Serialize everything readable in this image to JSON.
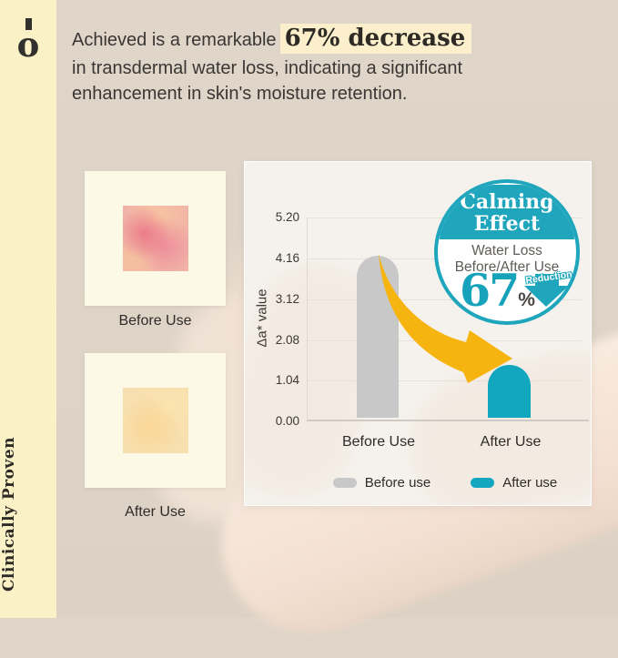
{
  "brand": {
    "logo_glyph": "o",
    "tagline": "Clinically Proven"
  },
  "header": {
    "line1_prefix": "Achieved is a remarkable",
    "highlight": "67% decrease",
    "line2": "in transdermal water loss, indicating a significant",
    "line3": "enhancement in skin's moisture retention."
  },
  "cards": {
    "before_label": "Before Use",
    "after_label": "After Use"
  },
  "badge": {
    "title_line1": "Calming",
    "title_line2": "Effect",
    "subtitle_line1": "Water Loss",
    "subtitle_line2": "Before/After Use",
    "percent_value": "67",
    "percent_sign": "%",
    "reduction_label": "Reduction"
  },
  "chart_data": {
    "type": "bar",
    "title": "Water Loss Before/After Use",
    "categories": [
      "Before Use",
      "After Use"
    ],
    "values": [
      4.16,
      1.37
    ],
    "ylabel": "Δa* value",
    "xlabel": "",
    "ylim": [
      0,
      5.2
    ],
    "yticks": [
      "5.20",
      "4.16",
      "3.12",
      "2.08",
      "1.04",
      "0.00"
    ],
    "grid": true,
    "legend_position": "bottom",
    "legend": [
      {
        "label": "Before use",
        "color": "#C8C8C8"
      },
      {
        "label": "After use",
        "color": "#12A7BF"
      }
    ],
    "annotation": "67% Reduction"
  },
  "colors": {
    "background": "#DED4C8",
    "sidebar_bg": "#FAF2C6",
    "highlight_bg": "#FBF0CB",
    "teal_accent": "#1FA6BD",
    "bar_gray": "#C8C8C8",
    "arrow_yellow": "#F6B411",
    "panel_bg": "#F5F2ED",
    "text_dark": "#34302C"
  }
}
